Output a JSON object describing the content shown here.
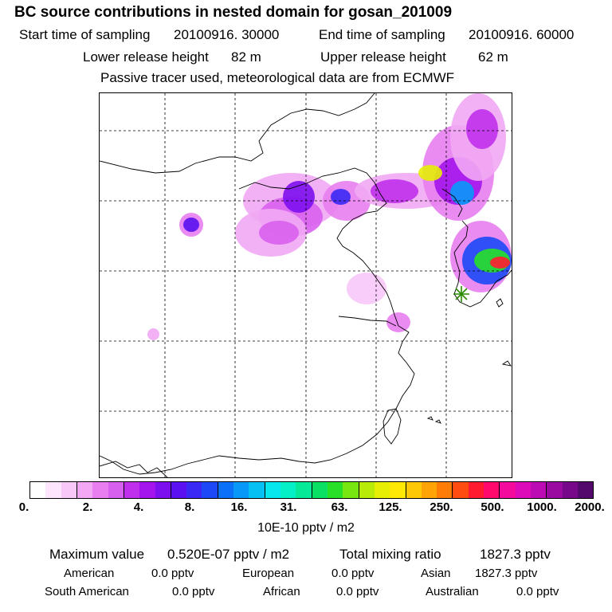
{
  "title": "BC  source contributions in nested domain for gosan_201009",
  "header": {
    "start_label": "Start time of sampling",
    "start_value": "20100916. 30000",
    "end_label": "End time of sampling",
    "end_value": "20100916. 60000",
    "lower_label": "Lower release height",
    "lower_value": "82 m",
    "upper_label": "Upper release height",
    "upper_value": "62 m",
    "note": "Passive tracer used, meteorological data are from ECMWF"
  },
  "colors": {
    "scale": [
      "#ffffff",
      "#fde6fd",
      "#f8c8f8",
      "#f2a8f4",
      "#e87ef0",
      "#d860ee",
      "#c030ec",
      "#a414ec",
      "#7d10ee",
      "#5a10f0",
      "#3a28f4",
      "#1c48f6",
      "#0a70f8",
      "#0898f8",
      "#06c0f4",
      "#06e8ee",
      "#06f0c8",
      "#06ea98",
      "#0ae064",
      "#28e028",
      "#78e610",
      "#b8ec08",
      "#e6ee06",
      "#ffe806",
      "#ffc806",
      "#ffa406",
      "#ff7c06",
      "#ff4c10",
      "#ff1c30",
      "#ff0a6c",
      "#f40a9c",
      "#dc0ab8",
      "#bc0ab4",
      "#9a0aa0",
      "#78088a",
      "#54086c"
    ],
    "marker": "#2a8a00"
  },
  "chart_data": {
    "type": "heatmap",
    "title": "BC  source contributions in nested domain for gosan_201009",
    "colorbar": {
      "ticks": [
        "0.",
        "2.",
        "4.",
        "8.",
        "16.",
        "31.",
        "63.",
        "125.",
        "250.",
        "500.",
        "1000.",
        "2000."
      ],
      "unit": "10E-10 pptv / m2"
    },
    "receptor": "gosan",
    "max_value": "0.520E-07 pptv / m2",
    "total_mixing_ratio": "1827.3 pptv",
    "contributions": [
      {
        "name": "American",
        "value": "0.0 pptv"
      },
      {
        "name": "European",
        "value": "0.0 pptv"
      },
      {
        "name": "Asian",
        "value": "1827.3 pptv"
      },
      {
        "name": "South American",
        "value": "0.0 pptv"
      },
      {
        "name": "African",
        "value": "0.0 pptv"
      },
      {
        "name": "Australian",
        "value": "0.0 pptv"
      }
    ]
  },
  "summary": {
    "max_label": "Maximum value",
    "total_label": "Total mixing ratio"
  }
}
